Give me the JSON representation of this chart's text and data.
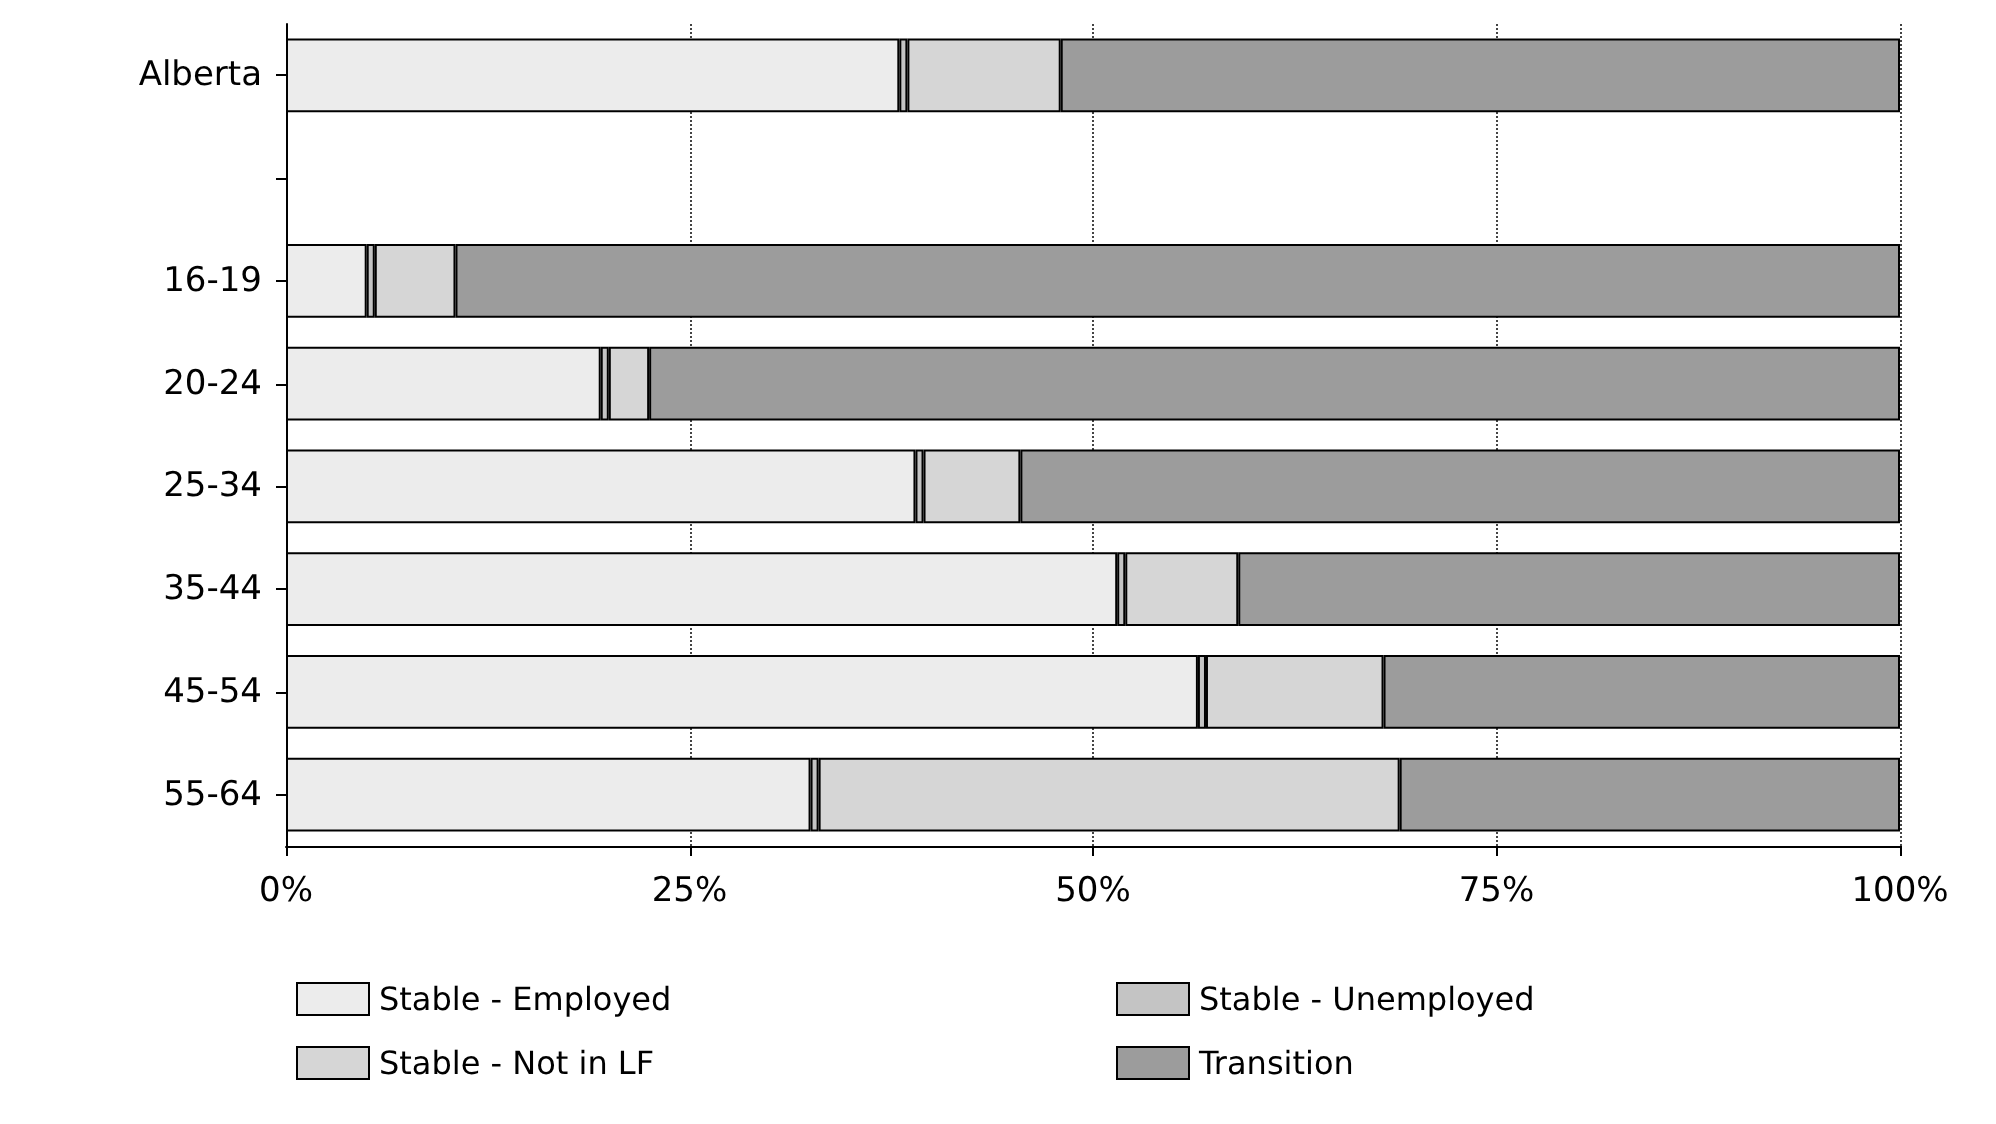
{
  "chart_data": {
    "type": "bar",
    "orientation": "horizontal",
    "stacked": true,
    "categories": [
      "Alberta",
      null,
      "16-19",
      "20-24",
      "25-34",
      "35-44",
      "45-54",
      "55-64"
    ],
    "series": [
      {
        "name": "Stable - Employed",
        "color": "#ececec",
        "values": [
          38,
          null,
          5,
          19.5,
          39,
          51.5,
          56.5,
          32.5
        ]
      },
      {
        "name": "Stable - Unemployed",
        "color": "#c4c4c4",
        "values": [
          0.5,
          null,
          0.5,
          0.5,
          0.5,
          0.5,
          0.5,
          0.5
        ]
      },
      {
        "name": "Stable - Not in LF",
        "color": "#d6d6d6",
        "values": [
          9.5,
          null,
          5,
          2.5,
          6,
          7,
          11,
          36
        ]
      },
      {
        "name": "Transition",
        "color": "#9c9c9c",
        "values": [
          52,
          null,
          89.5,
          77.5,
          54.5,
          41,
          32,
          31
        ]
      }
    ],
    "xlim": [
      0,
      100
    ],
    "xticks": [
      {
        "value": 0,
        "label": "0%"
      },
      {
        "value": 25,
        "label": "25%"
      },
      {
        "value": 50,
        "label": "50%"
      },
      {
        "value": 75,
        "label": "75%"
      },
      {
        "value": 100,
        "label": "100%"
      }
    ],
    "grid": "x",
    "legend": "bottom"
  }
}
